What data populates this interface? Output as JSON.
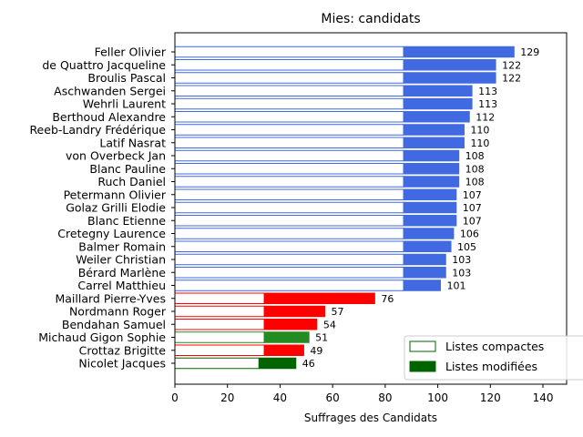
{
  "chart_data": {
    "type": "bar",
    "orientation": "horizontal",
    "title": "Mies: candidats",
    "xlabel": "Suffrages des Candidats",
    "ylabel": "",
    "xlim": [
      0,
      149
    ],
    "xticks": [
      0,
      20,
      40,
      60,
      80,
      100,
      120,
      140
    ],
    "grid": false,
    "legend_position": "bottom-right",
    "legend": [
      {
        "label": "Listes compactes",
        "style": "outline",
        "color": "#006400"
      },
      {
        "label": "Listes modifiées",
        "style": "filled",
        "color": "#006400"
      }
    ],
    "candidates": [
      {
        "name": "Feller Olivier",
        "total": 129,
        "compact": 87,
        "color": "#4169e1"
      },
      {
        "name": "de Quattro Jacqueline",
        "total": 122,
        "compact": 87,
        "color": "#4169e1"
      },
      {
        "name": "Broulis Pascal",
        "total": 122,
        "compact": 87,
        "color": "#4169e1"
      },
      {
        "name": "Aschwanden Sergei",
        "total": 113,
        "compact": 87,
        "color": "#4169e1"
      },
      {
        "name": "Wehrli Laurent",
        "total": 113,
        "compact": 87,
        "color": "#4169e1"
      },
      {
        "name": "Berthoud Alexandre",
        "total": 112,
        "compact": 87,
        "color": "#4169e1"
      },
      {
        "name": "Reeb-Landry Frédérique",
        "total": 110,
        "compact": 87,
        "color": "#4169e1"
      },
      {
        "name": "Latif Nasrat",
        "total": 110,
        "compact": 87,
        "color": "#4169e1"
      },
      {
        "name": "von Overbeck Jan",
        "total": 108,
        "compact": 87,
        "color": "#4169e1"
      },
      {
        "name": "Blanc Pauline",
        "total": 108,
        "compact": 87,
        "color": "#4169e1"
      },
      {
        "name": "Ruch Daniel",
        "total": 108,
        "compact": 87,
        "color": "#4169e1"
      },
      {
        "name": "Petermann Olivier",
        "total": 107,
        "compact": 87,
        "color": "#4169e1"
      },
      {
        "name": "Golaz Grilli Elodie",
        "total": 107,
        "compact": 87,
        "color": "#4169e1"
      },
      {
        "name": "Blanc Etienne",
        "total": 107,
        "compact": 87,
        "color": "#4169e1"
      },
      {
        "name": "Cretegny Laurence",
        "total": 106,
        "compact": 87,
        "color": "#4169e1"
      },
      {
        "name": "Balmer Romain",
        "total": 105,
        "compact": 87,
        "color": "#4169e1"
      },
      {
        "name": "Weiler Christian",
        "total": 103,
        "compact": 87,
        "color": "#4169e1"
      },
      {
        "name": "Bérard Marlène",
        "total": 103,
        "compact": 87,
        "color": "#4169e1"
      },
      {
        "name": "Carrel Matthieu",
        "total": 101,
        "compact": 87,
        "color": "#4169e1"
      },
      {
        "name": "Maillard Pierre-Yves",
        "total": 76,
        "compact": 34,
        "color": "#ff0000"
      },
      {
        "name": "Nordmann Roger",
        "total": 57,
        "compact": 34,
        "color": "#ff0000"
      },
      {
        "name": "Bendahan Samuel",
        "total": 54,
        "compact": 34,
        "color": "#ff0000"
      },
      {
        "name": "Michaud Gigon Sophie",
        "total": 51,
        "compact": 34,
        "color": "#228b22"
      },
      {
        "name": "Crottaz Brigitte",
        "total": 49,
        "compact": 34,
        "color": "#ff0000"
      },
      {
        "name": "Nicolet Jacques",
        "total": 46,
        "compact": 32,
        "color": "#006400"
      }
    ]
  }
}
